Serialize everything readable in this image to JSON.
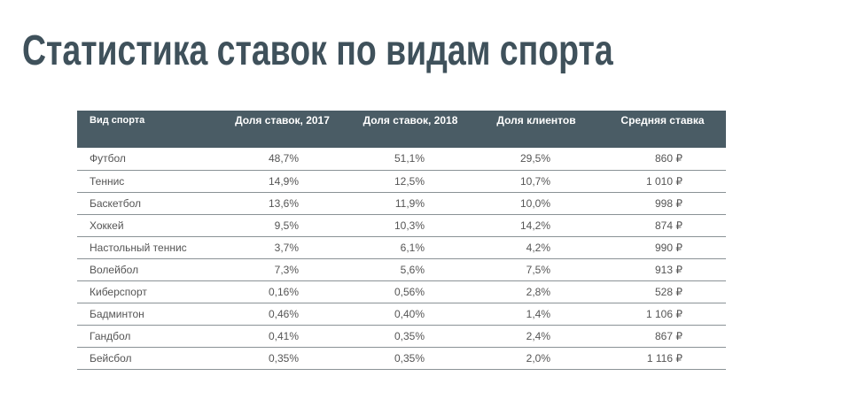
{
  "header": {
    "title": "Статистика ставок по видам спорта"
  },
  "table": {
    "headers": [
      "Вид спорта",
      "Доля ставок, 2017",
      "Доля ставок, 2018",
      "Доля клиентов",
      "Средняя ставка"
    ],
    "rows": [
      [
        "Футбол",
        "48,7%",
        "51,1%",
        "29,5%",
        "860 ₽"
      ],
      [
        "Теннис",
        "14,9%",
        "12,5%",
        "10,7%",
        "1 010 ₽"
      ],
      [
        "Баскетбол",
        "13,6%",
        "11,9%",
        "10,0%",
        "998 ₽"
      ],
      [
        "Хоккей",
        "9,5%",
        "10,3%",
        "14,2%",
        "874 ₽"
      ],
      [
        "Настольный теннис",
        "3,7%",
        "6,1%",
        "4,2%",
        "990 ₽"
      ],
      [
        "Волейбол",
        "7,3%",
        "5,6%",
        "7,5%",
        "913 ₽"
      ],
      [
        "Киберспорт",
        "0,16%",
        "0,56%",
        "2,8%",
        "528 ₽"
      ],
      [
        "Бадминтон",
        "0,46%",
        "0,40%",
        "1,4%",
        "1 106 ₽"
      ],
      [
        "Гандбол",
        "0,41%",
        "0,35%",
        "2,4%",
        "867 ₽"
      ],
      [
        "Бейсбол",
        "0,35%",
        "0,35%",
        "2,0%",
        "1 116 ₽"
      ]
    ]
  }
}
